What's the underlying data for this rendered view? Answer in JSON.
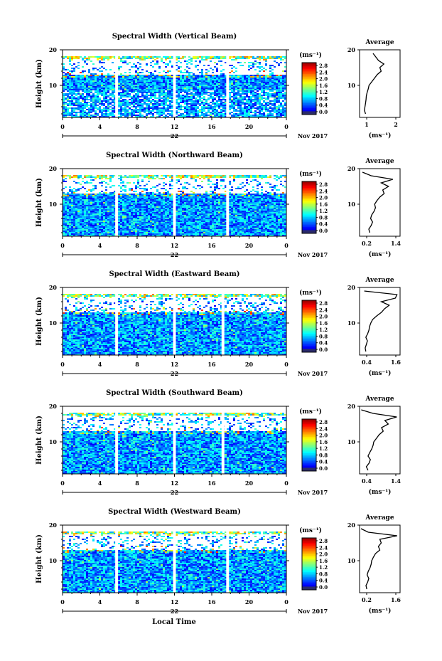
{
  "figure": {
    "date_label": "Nov 2017",
    "xlabel_bottom": "Local Time",
    "height_label": "Height (km)",
    "unit_label": "(ms⁻¹)",
    "average_title": "Average",
    "colorbar_ticks": [
      "2.8",
      "2.4",
      "2.0",
      "1.6",
      "1.2",
      "0.8",
      "0.4",
      "0.0"
    ],
    "x_ticks": [
      "0",
      "4",
      "8",
      "12",
      "16",
      "20",
      "0"
    ],
    "y_ticks": [
      "20",
      "10"
    ]
  },
  "chart_data": [
    {
      "type": "heatmap",
      "title": "Spectral Width (Vertical Beam)",
      "day_label": "22",
      "xlabel": "",
      "ylabel": "Height (km)",
      "xlim": [
        0,
        24
      ],
      "ylim": [
        1,
        20
      ],
      "x_ticks": [
        0,
        4,
        8,
        12,
        16,
        20,
        24
      ],
      "data_gaps_hours": [
        5.8,
        12.0,
        17.7
      ],
      "color_range": [
        0.0,
        3.0
      ],
      "profile": {
        "title": "Average",
        "xlabel": "(ms⁻¹)",
        "xlim": [
          0.5,
          2.0
        ],
        "x_ticks": [
          "1",
          "2"
        ],
        "height_km": [
          2,
          3,
          4,
          5,
          6,
          7,
          8,
          9,
          10,
          11,
          12,
          13,
          14,
          15,
          16,
          17,
          18,
          19
        ],
        "values": [
          0.72,
          0.68,
          0.7,
          0.72,
          0.74,
          0.75,
          0.78,
          0.82,
          0.85,
          0.95,
          1.05,
          1.15,
          1.3,
          1.25,
          1.4,
          1.2,
          1.1,
          1.0
        ]
      }
    },
    {
      "type": "heatmap",
      "title": "Spectral Width (Northward Beam)",
      "day_label": "22",
      "xlabel": "",
      "ylabel": "Height (km)",
      "xlim": [
        0,
        24
      ],
      "ylim": [
        1,
        20
      ],
      "x_ticks": [
        0,
        4,
        8,
        12,
        16,
        20,
        24
      ],
      "data_gaps_hours": [
        5.8,
        12.0,
        17.7
      ],
      "color_range": [
        0.0,
        3.0
      ],
      "profile": {
        "title": "Average",
        "xlabel": "(ms⁻¹)",
        "xlim": [
          0.2,
          1.6
        ],
        "x_ticks": [
          "0.2",
          "1.4"
        ],
        "height_km": [
          2,
          3,
          4,
          5,
          6,
          7,
          8,
          9,
          10,
          11,
          12,
          13,
          14,
          15,
          16,
          17,
          18,
          19
        ],
        "values": [
          0.55,
          0.52,
          0.6,
          0.65,
          0.58,
          0.62,
          0.7,
          0.75,
          0.72,
          0.8,
          0.9,
          1.05,
          1.0,
          1.2,
          0.95,
          1.35,
          0.6,
          0.3
        ]
      }
    },
    {
      "type": "heatmap",
      "title": "Spectral Width (Eastward Beam)",
      "day_label": "22",
      "xlabel": "",
      "ylabel": "Height (km)",
      "xlim": [
        0,
        24
      ],
      "ylim": [
        1,
        20
      ],
      "x_ticks": [
        0,
        4,
        8,
        12,
        16,
        20,
        24
      ],
      "data_gaps_hours": [
        5.8,
        12.0,
        17.2
      ],
      "color_range": [
        0.0,
        3.0
      ],
      "profile": {
        "title": "Average",
        "xlabel": "(ms⁻¹)",
        "xlim": [
          0.3,
          1.6
        ],
        "x_ticks": [
          "0.4",
          "1.6"
        ],
        "height_km": [
          2,
          3,
          4,
          5,
          6,
          7,
          8,
          9,
          10,
          11,
          12,
          13,
          14,
          15,
          16,
          17,
          18,
          19
        ],
        "values": [
          0.5,
          0.48,
          0.52,
          0.55,
          0.5,
          0.56,
          0.6,
          0.62,
          0.66,
          0.72,
          0.85,
          1.0,
          1.1,
          1.25,
          1.0,
          1.45,
          1.5,
          0.45
        ]
      }
    },
    {
      "type": "heatmap",
      "title": "Spectral Width (Southward Beam)",
      "day_label": "22",
      "xlabel": "",
      "ylabel": "Height (km)",
      "xlim": [
        0,
        24
      ],
      "ylim": [
        1,
        20
      ],
      "x_ticks": [
        0,
        4,
        8,
        12,
        16,
        20,
        24
      ],
      "data_gaps_hours": [
        5.8,
        12.0,
        17.2
      ],
      "color_range": [
        0.0,
        3.0
      ],
      "profile": {
        "title": "Average",
        "xlabel": "(ms⁻¹)",
        "xlim": [
          0.3,
          1.5
        ],
        "x_ticks": [
          "0.4",
          "1.4"
        ],
        "height_km": [
          2,
          3,
          4,
          5,
          6,
          7,
          8,
          9,
          10,
          11,
          12,
          13,
          14,
          15,
          16,
          17,
          18,
          19
        ],
        "values": [
          0.55,
          0.5,
          0.58,
          0.62,
          0.55,
          0.6,
          0.66,
          0.7,
          0.72,
          0.8,
          0.88,
          1.0,
          0.95,
          1.15,
          1.05,
          1.4,
          0.7,
          0.35
        ]
      }
    },
    {
      "type": "heatmap",
      "title": "Spectral Width (Westward Beam)",
      "day_label": "22",
      "xlabel": "Local Time",
      "ylabel": "Height (km)",
      "xlim": [
        0,
        24
      ],
      "ylim": [
        1,
        20
      ],
      "x_ticks": [
        0,
        4,
        8,
        12,
        16,
        20,
        24
      ],
      "data_gaps_hours": [
        5.8,
        12.0,
        17.7
      ],
      "color_range": [
        0.0,
        3.0
      ],
      "profile": {
        "title": "Average",
        "xlabel": "(ms⁻¹)",
        "xlim": [
          0.2,
          1.6
        ],
        "x_ticks": [
          "0.2",
          "1.6"
        ],
        "height_km": [
          2,
          3,
          4,
          5,
          6,
          7,
          8,
          9,
          10,
          11,
          12,
          13,
          14,
          15,
          16,
          17,
          18,
          19
        ],
        "values": [
          0.45,
          0.42,
          0.48,
          0.52,
          0.46,
          0.5,
          0.56,
          0.6,
          0.62,
          0.68,
          0.75,
          0.9,
          0.85,
          0.95,
          0.9,
          1.5,
          0.5,
          0.25
        ]
      }
    }
  ]
}
